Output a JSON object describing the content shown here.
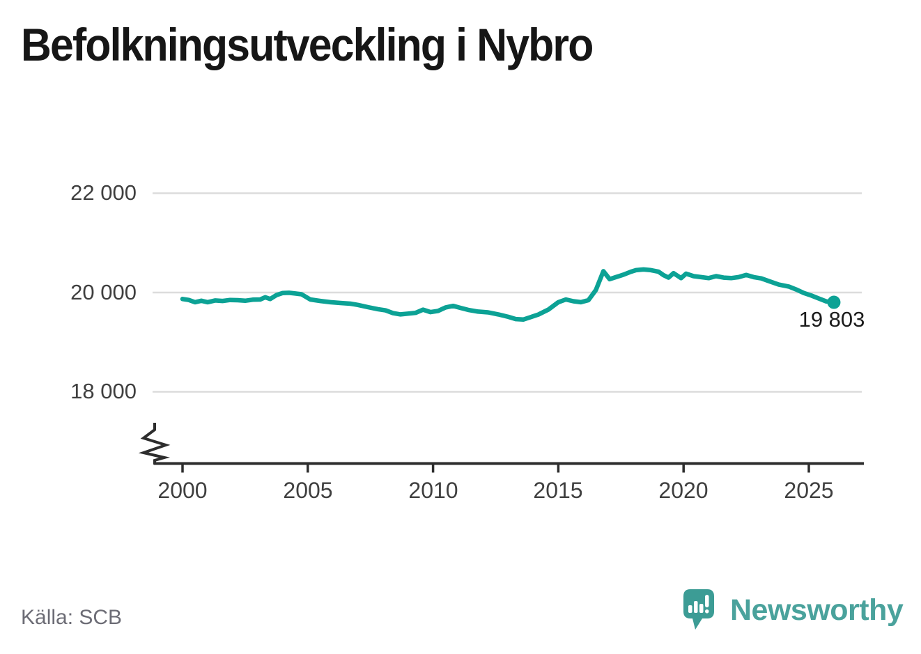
{
  "header": {
    "title": "Befolkningsutveckling i Nybro"
  },
  "footer": {
    "source_label": "Källa: SCB",
    "brand_name": "Newsworthy"
  },
  "brand": {
    "icon": "speech-bubble-chart-icon",
    "bubble_color": "#3c9c95",
    "wordmark_color": "#4aa29c"
  },
  "colors": {
    "line": "#0ca295",
    "grid": "#dcdcdc",
    "axis": "#2d2d2d",
    "tick_text": "#3f3f3f",
    "title_text": "#161616",
    "annotation_text": "#1b1b1b",
    "source_text": "#6c6c75",
    "background": "#ffffff"
  },
  "chart_data": {
    "type": "line",
    "title": "Befolkningsutveckling i Nybro",
    "xlabel": "",
    "ylabel": "",
    "grid": "horizontal-only",
    "legend": "none",
    "y_axis_break": true,
    "xlim": [
      1999,
      2027.2
    ],
    "ylim": [
      17600,
      22300
    ],
    "x_ticks": [
      2000,
      2005,
      2010,
      2015,
      2020,
      2025
    ],
    "x_tick_labels": [
      "2000",
      "2005",
      "2010",
      "2015",
      "2020",
      "2025"
    ],
    "y_ticks_top_to_bottom": [
      22000,
      20000,
      18000
    ],
    "y_tick_labels_top_to_bottom": [
      "22 000",
      "20 000",
      "18 000"
    ],
    "series": [
      {
        "color": "#0ca295",
        "x": [
          2000.0,
          2000.25,
          2000.5,
          2000.75,
          2001.0,
          2001.3,
          2001.6,
          2001.9,
          2002.2,
          2002.5,
          2002.8,
          2003.1,
          2003.3,
          2003.5,
          2003.75,
          2004.0,
          2004.25,
          2004.5,
          2004.75,
          2005.1,
          2005.5,
          2005.9,
          2006.3,
          2006.7,
          2007.0,
          2007.4,
          2007.8,
          2008.1,
          2008.4,
          2008.7,
          2009.0,
          2009.3,
          2009.6,
          2009.9,
          2010.2,
          2010.5,
          2010.8,
          2011.1,
          2011.4,
          2011.8,
          2012.2,
          2012.6,
          2013.0,
          2013.3,
          2013.6,
          2013.9,
          2014.2,
          2014.6,
          2015.0,
          2015.3,
          2015.6,
          2015.9,
          2016.2,
          2016.5,
          2016.8,
          2017.05,
          2017.3,
          2017.6,
          2017.9,
          2018.1,
          2018.4,
          2018.7,
          2019.0,
          2019.2,
          2019.4,
          2019.6,
          2019.9,
          2020.1,
          2020.4,
          2020.7,
          2021.0,
          2021.3,
          2021.6,
          2021.9,
          2022.2,
          2022.5,
          2022.8,
          2023.1,
          2023.4,
          2023.8,
          2024.2,
          2024.5,
          2024.8,
          2025.1,
          2025.4,
          2025.7,
          2026.0
        ],
        "values": [
          19870,
          19850,
          19805,
          19835,
          19805,
          19840,
          19830,
          19850,
          19845,
          19835,
          19855,
          19860,
          19905,
          19870,
          19950,
          19990,
          19995,
          19980,
          19965,
          19860,
          19830,
          19805,
          19790,
          19775,
          19750,
          19705,
          19665,
          19640,
          19585,
          19560,
          19575,
          19590,
          19655,
          19605,
          19630,
          19700,
          19730,
          19690,
          19650,
          19615,
          19600,
          19560,
          19510,
          19465,
          19455,
          19505,
          19555,
          19655,
          19805,
          19860,
          19825,
          19805,
          19845,
          20050,
          20430,
          20270,
          20310,
          20360,
          20420,
          20450,
          20465,
          20450,
          20420,
          20350,
          20300,
          20390,
          20290,
          20380,
          20330,
          20310,
          20290,
          20330,
          20300,
          20290,
          20310,
          20355,
          20310,
          20285,
          20230,
          20160,
          20120,
          20060,
          19990,
          19940,
          19880,
          19820,
          19803
        ]
      }
    ],
    "end_point": {
      "x": 2026.0,
      "value": 19803,
      "label": "19 803",
      "marker": "dot"
    }
  }
}
